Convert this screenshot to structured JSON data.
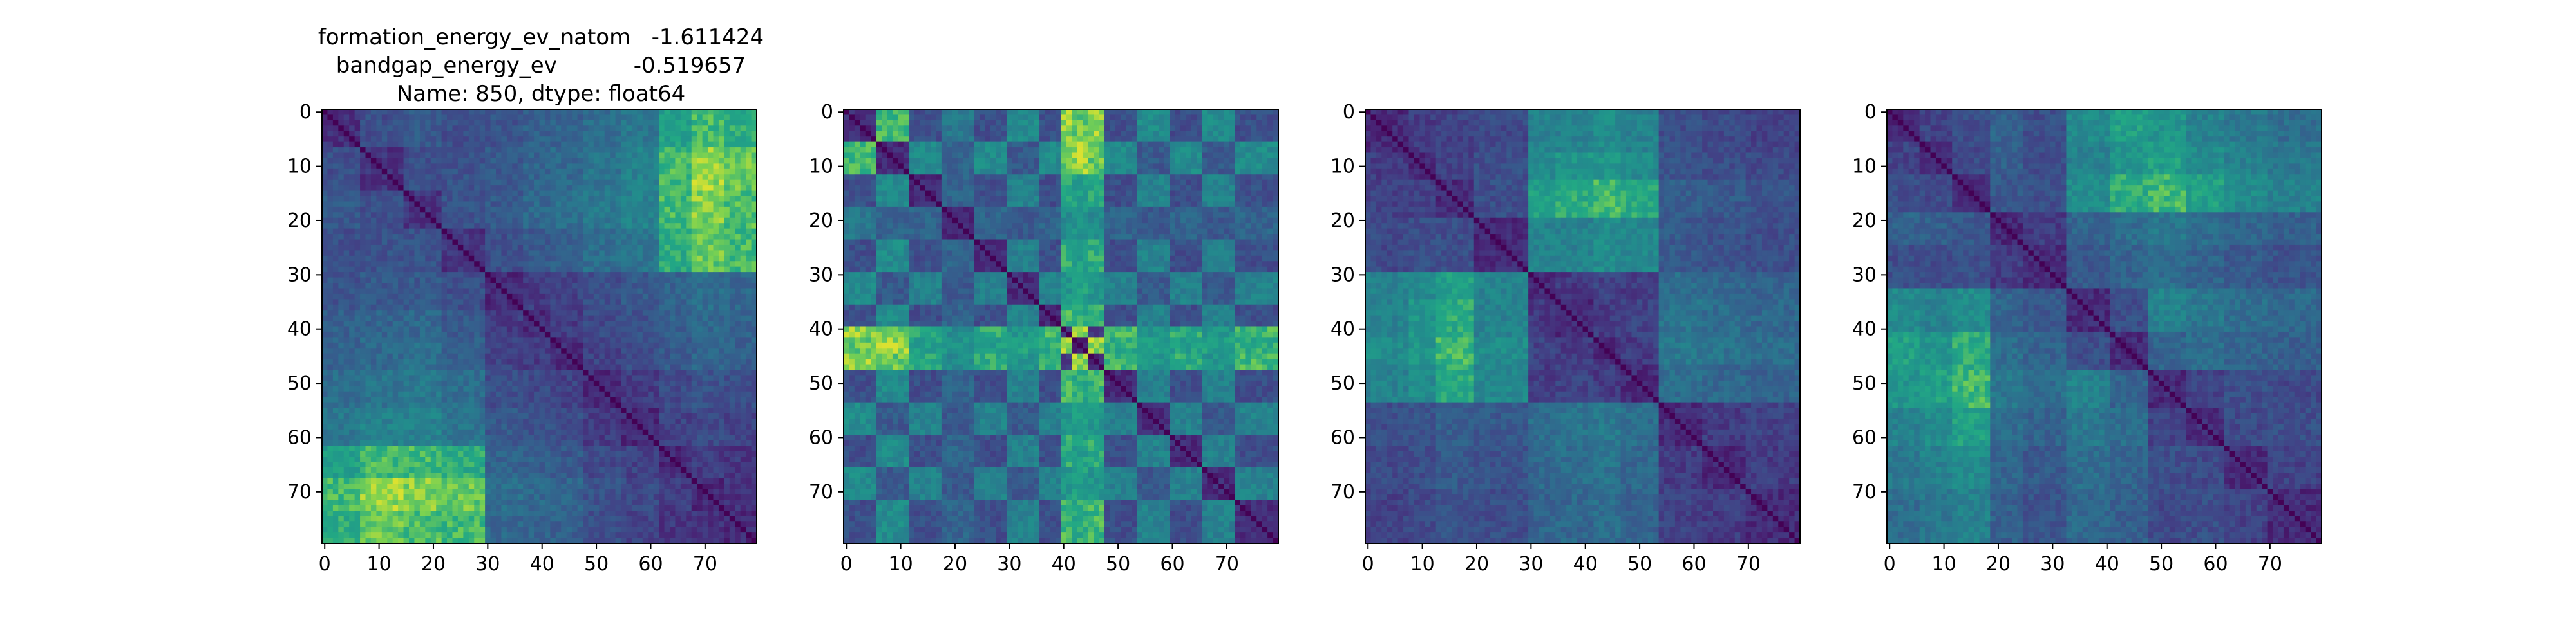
{
  "title": {
    "lines": [
      "formation_energy_ev_natom   -1.611424",
      "bandgap_energy_ev           -0.519657",
      "Name: 850, dtype: float64"
    ]
  },
  "chart_data": [
    {
      "type": "heatmap",
      "n": 80,
      "blocks": [
        0,
        7,
        15,
        22,
        30,
        37,
        42,
        48,
        55,
        62,
        68,
        74,
        80
      ],
      "block_levels": [
        [
          0.18,
          0.3,
          0.35,
          0.3,
          0.32,
          0.38,
          0.4,
          0.45,
          0.5,
          0.7,
          0.8,
          0.75
        ],
        [
          0.3,
          0.18,
          0.3,
          0.32,
          0.35,
          0.4,
          0.42,
          0.48,
          0.55,
          0.8,
          0.9,
          0.85
        ],
        [
          0.35,
          0.3,
          0.18,
          0.32,
          0.35,
          0.42,
          0.45,
          0.5,
          0.55,
          0.8,
          0.88,
          0.82
        ],
        [
          0.3,
          0.32,
          0.32,
          0.18,
          0.3,
          0.35,
          0.38,
          0.45,
          0.48,
          0.75,
          0.85,
          0.8
        ],
        [
          0.32,
          0.35,
          0.35,
          0.3,
          0.15,
          0.22,
          0.25,
          0.3,
          0.35,
          0.4,
          0.45,
          0.42
        ],
        [
          0.38,
          0.4,
          0.42,
          0.35,
          0.22,
          0.15,
          0.22,
          0.28,
          0.32,
          0.38,
          0.42,
          0.4
        ],
        [
          0.4,
          0.42,
          0.45,
          0.38,
          0.25,
          0.22,
          0.15,
          0.25,
          0.3,
          0.35,
          0.4,
          0.38
        ],
        [
          0.45,
          0.48,
          0.5,
          0.45,
          0.3,
          0.28,
          0.25,
          0.15,
          0.22,
          0.28,
          0.32,
          0.3
        ],
        [
          0.5,
          0.55,
          0.55,
          0.48,
          0.35,
          0.32,
          0.3,
          0.22,
          0.15,
          0.25,
          0.28,
          0.26
        ],
        [
          0.7,
          0.8,
          0.8,
          0.75,
          0.4,
          0.38,
          0.35,
          0.28,
          0.25,
          0.15,
          0.22,
          0.2
        ],
        [
          0.8,
          0.9,
          0.88,
          0.85,
          0.45,
          0.42,
          0.4,
          0.32,
          0.28,
          0.22,
          0.15,
          0.18
        ],
        [
          0.75,
          0.85,
          0.82,
          0.8,
          0.42,
          0.4,
          0.38,
          0.3,
          0.26,
          0.2,
          0.18,
          0.15
        ]
      ],
      "xticks": [
        0,
        10,
        20,
        30,
        40,
        50,
        60,
        70
      ],
      "yticks": [
        0,
        10,
        20,
        30,
        40,
        50,
        60,
        70
      ],
      "colormap": "viridis"
    },
    {
      "type": "heatmap",
      "n": 80,
      "blocks": [
        0,
        6,
        12,
        18,
        24,
        30,
        36,
        40,
        42,
        45,
        48,
        54,
        60,
        66,
        72,
        80
      ],
      "block_levels": [
        [
          0.15,
          0.8,
          0.3,
          0.5,
          0.3,
          0.6,
          0.3,
          0.9,
          0.85,
          0.9,
          0.3,
          0.6,
          0.3,
          0.6,
          0.3
        ],
        [
          0.8,
          0.15,
          0.6,
          0.4,
          0.6,
          0.35,
          0.6,
          0.85,
          0.9,
          0.85,
          0.6,
          0.35,
          0.6,
          0.35,
          0.6
        ],
        [
          0.3,
          0.6,
          0.15,
          0.4,
          0.3,
          0.55,
          0.3,
          0.75,
          0.7,
          0.75,
          0.3,
          0.55,
          0.3,
          0.55,
          0.3
        ],
        [
          0.5,
          0.4,
          0.4,
          0.15,
          0.4,
          0.35,
          0.4,
          0.6,
          0.65,
          0.6,
          0.4,
          0.35,
          0.4,
          0.35,
          0.4
        ],
        [
          0.3,
          0.6,
          0.3,
          0.4,
          0.15,
          0.55,
          0.3,
          0.75,
          0.7,
          0.75,
          0.3,
          0.55,
          0.3,
          0.55,
          0.3
        ],
        [
          0.6,
          0.35,
          0.55,
          0.35,
          0.55,
          0.15,
          0.55,
          0.65,
          0.7,
          0.65,
          0.55,
          0.35,
          0.55,
          0.35,
          0.55
        ],
        [
          0.3,
          0.6,
          0.3,
          0.4,
          0.3,
          0.55,
          0.15,
          0.8,
          0.75,
          0.8,
          0.3,
          0.55,
          0.3,
          0.55,
          0.3
        ],
        [
          0.9,
          0.85,
          0.75,
          0.6,
          0.75,
          0.65,
          0.8,
          0.15,
          0.9,
          0.2,
          0.8,
          0.65,
          0.75,
          0.65,
          0.8
        ],
        [
          0.85,
          0.9,
          0.7,
          0.65,
          0.7,
          0.7,
          0.75,
          0.9,
          0.15,
          0.9,
          0.75,
          0.7,
          0.7,
          0.7,
          0.75
        ],
        [
          0.9,
          0.85,
          0.75,
          0.6,
          0.75,
          0.65,
          0.8,
          0.2,
          0.9,
          0.15,
          0.8,
          0.65,
          0.75,
          0.65,
          0.8
        ],
        [
          0.3,
          0.6,
          0.3,
          0.4,
          0.3,
          0.55,
          0.3,
          0.8,
          0.75,
          0.8,
          0.15,
          0.55,
          0.3,
          0.55,
          0.3
        ],
        [
          0.6,
          0.35,
          0.55,
          0.35,
          0.55,
          0.35,
          0.55,
          0.65,
          0.7,
          0.65,
          0.55,
          0.15,
          0.55,
          0.35,
          0.55
        ],
        [
          0.3,
          0.6,
          0.3,
          0.4,
          0.3,
          0.55,
          0.3,
          0.75,
          0.7,
          0.75,
          0.3,
          0.55,
          0.15,
          0.55,
          0.3
        ],
        [
          0.6,
          0.35,
          0.55,
          0.35,
          0.55,
          0.35,
          0.55,
          0.65,
          0.7,
          0.65,
          0.55,
          0.35,
          0.55,
          0.15,
          0.55
        ],
        [
          0.3,
          0.6,
          0.3,
          0.4,
          0.3,
          0.55,
          0.3,
          0.8,
          0.75,
          0.8,
          0.3,
          0.55,
          0.3,
          0.55,
          0.15
        ]
      ],
      "xticks": [
        0,
        10,
        20,
        30,
        40,
        50,
        60,
        70
      ],
      "yticks": [
        0,
        10,
        20,
        30,
        40,
        50,
        60,
        70
      ],
      "colormap": "viridis"
    },
    {
      "type": "heatmap",
      "n": 80,
      "blocks": [
        0,
        8,
        13,
        20,
        30,
        35,
        42,
        47,
        54,
        62,
        70,
        80
      ],
      "block_levels": [
        [
          0.15,
          0.22,
          0.25,
          0.28,
          0.55,
          0.55,
          0.6,
          0.55,
          0.3,
          0.28,
          0.25
        ],
        [
          0.22,
          0.15,
          0.25,
          0.3,
          0.6,
          0.65,
          0.65,
          0.6,
          0.32,
          0.3,
          0.28
        ],
        [
          0.25,
          0.25,
          0.15,
          0.3,
          0.7,
          0.75,
          0.8,
          0.75,
          0.38,
          0.35,
          0.32
        ],
        [
          0.28,
          0.3,
          0.3,
          0.15,
          0.55,
          0.55,
          0.6,
          0.58,
          0.35,
          0.32,
          0.3
        ],
        [
          0.55,
          0.6,
          0.7,
          0.55,
          0.15,
          0.2,
          0.25,
          0.22,
          0.45,
          0.42,
          0.4
        ],
        [
          0.55,
          0.65,
          0.75,
          0.55,
          0.2,
          0.15,
          0.22,
          0.25,
          0.48,
          0.45,
          0.42
        ],
        [
          0.6,
          0.65,
          0.8,
          0.6,
          0.25,
          0.22,
          0.15,
          0.22,
          0.5,
          0.48,
          0.45
        ],
        [
          0.55,
          0.6,
          0.75,
          0.58,
          0.22,
          0.25,
          0.22,
          0.15,
          0.45,
          0.42,
          0.4
        ],
        [
          0.3,
          0.32,
          0.38,
          0.35,
          0.45,
          0.48,
          0.5,
          0.45,
          0.15,
          0.22,
          0.25
        ],
        [
          0.28,
          0.3,
          0.35,
          0.32,
          0.42,
          0.45,
          0.48,
          0.42,
          0.22,
          0.15,
          0.22
        ],
        [
          0.25,
          0.28,
          0.32,
          0.3,
          0.4,
          0.42,
          0.45,
          0.4,
          0.25,
          0.22,
          0.15
        ]
      ],
      "xticks": [
        0,
        10,
        20,
        30,
        40,
        50,
        60,
        70
      ],
      "yticks": [
        0,
        10,
        20,
        30,
        40,
        50,
        60,
        70
      ],
      "colormap": "viridis"
    },
    {
      "type": "heatmap",
      "n": 80,
      "blocks": [
        0,
        6,
        12,
        19,
        25,
        33,
        41,
        48,
        55,
        62,
        70,
        80
      ],
      "block_levels": [
        [
          0.15,
          0.25,
          0.3,
          0.4,
          0.3,
          0.6,
          0.7,
          0.65,
          0.55,
          0.5,
          0.45
        ],
        [
          0.25,
          0.15,
          0.28,
          0.38,
          0.3,
          0.55,
          0.65,
          0.7,
          0.6,
          0.55,
          0.5
        ],
        [
          0.3,
          0.28,
          0.15,
          0.35,
          0.3,
          0.6,
          0.75,
          0.8,
          0.7,
          0.6,
          0.55
        ],
        [
          0.4,
          0.38,
          0.35,
          0.15,
          0.22,
          0.4,
          0.45,
          0.5,
          0.45,
          0.4,
          0.38
        ],
        [
          0.3,
          0.3,
          0.3,
          0.22,
          0.15,
          0.35,
          0.4,
          0.45,
          0.4,
          0.35,
          0.32
        ],
        [
          0.6,
          0.55,
          0.6,
          0.4,
          0.35,
          0.15,
          0.3,
          0.55,
          0.5,
          0.45,
          0.42
        ],
        [
          0.7,
          0.65,
          0.75,
          0.45,
          0.4,
          0.3,
          0.15,
          0.4,
          0.45,
          0.4,
          0.38
        ],
        [
          0.65,
          0.7,
          0.8,
          0.5,
          0.45,
          0.55,
          0.4,
          0.15,
          0.25,
          0.3,
          0.28
        ],
        [
          0.55,
          0.6,
          0.7,
          0.45,
          0.4,
          0.5,
          0.45,
          0.25,
          0.15,
          0.28,
          0.3
        ],
        [
          0.5,
          0.55,
          0.6,
          0.4,
          0.35,
          0.45,
          0.4,
          0.3,
          0.28,
          0.15,
          0.25
        ],
        [
          0.45,
          0.5,
          0.55,
          0.38,
          0.32,
          0.42,
          0.38,
          0.28,
          0.3,
          0.25,
          0.15
        ]
      ],
      "xticks": [
        0,
        10,
        20,
        30,
        40,
        50,
        60,
        70
      ],
      "yticks": [
        0,
        10,
        20,
        30,
        40,
        50,
        60,
        70
      ],
      "colormap": "viridis"
    }
  ]
}
